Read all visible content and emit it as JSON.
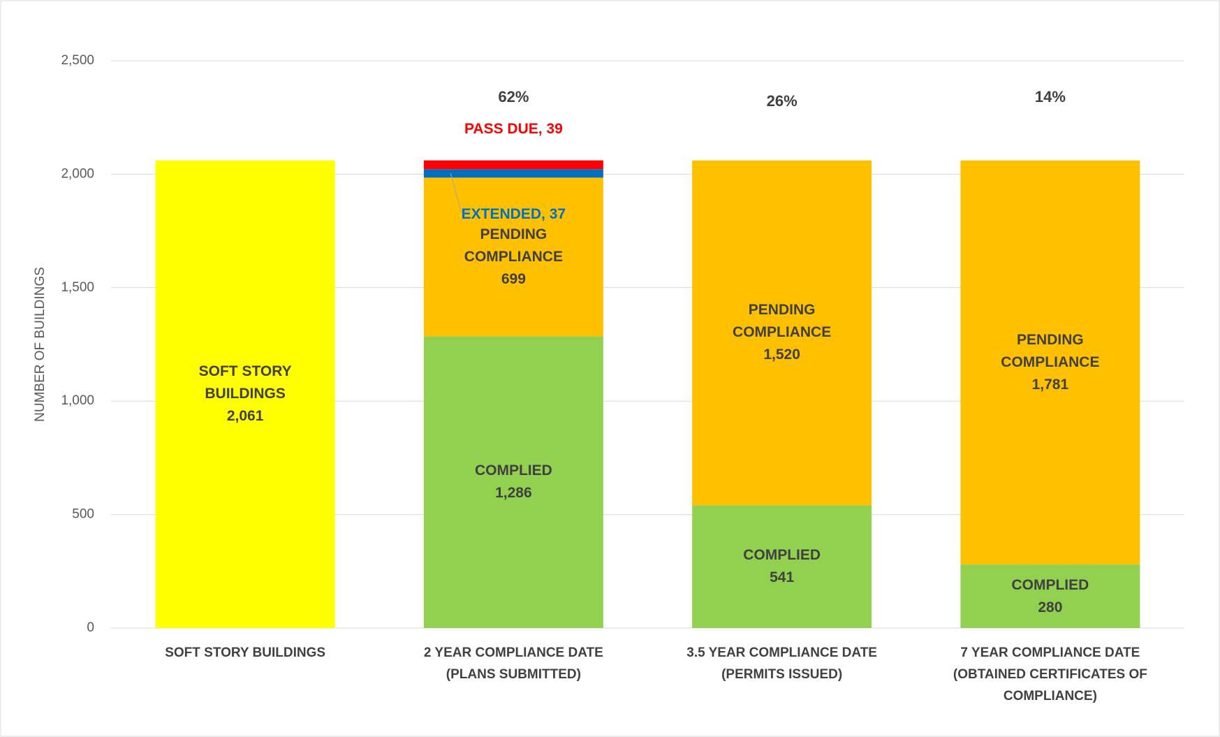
{
  "chart_data": {
    "type": "stacked_bar",
    "y_axis_label": "NUMBER OF BUILDINGS",
    "categories": [
      [
        "SOFT STORY BUILDINGS"
      ],
      [
        "2 YEAR COMPLIANCE DATE",
        "(PLANS SUBMITTED)"
      ],
      [
        "3.5 YEAR COMPLIANCE DATE",
        "(PERMITS ISSUED)"
      ],
      [
        "7 YEAR COMPLIANCE DATE",
        "(OBTAINED CERTIFICATES OF",
        "COMPLIANCE)"
      ]
    ],
    "series": [
      {
        "name": "SOFT STORY BUILDINGS",
        "color": "#ffff00",
        "label_color": "#404040",
        "values": [
          2061,
          null,
          null,
          null
        ],
        "value_labels": [
          "2,061",
          null,
          null,
          null
        ]
      },
      {
        "name": "COMPLIED",
        "color": "#92d050",
        "label_color": "#404040",
        "values": [
          null,
          1286,
          541,
          280
        ],
        "value_labels": [
          null,
          "1,286",
          "541",
          "280"
        ]
      },
      {
        "name": "PENDING COMPLIANCE",
        "color": "#ffc000",
        "label_color": "#404040",
        "values": [
          null,
          699,
          1520,
          1781
        ],
        "value_labels": [
          null,
          "699",
          "1,520",
          "1,781"
        ]
      },
      {
        "name": "EXTENDED",
        "color": "#0070c0",
        "label_color": "#0070c0",
        "values": [
          null,
          37,
          null,
          null
        ],
        "value_labels": [
          null,
          ", 37",
          null,
          null
        ]
      },
      {
        "name": "PASS DUE",
        "color": "#ff0000",
        "label_color": "#ff0000",
        "values": [
          null,
          39,
          null,
          null
        ],
        "value_labels": [
          null,
          ", 39",
          null,
          null
        ]
      }
    ],
    "annotations": [
      null,
      "62%",
      "26%",
      "14%"
    ],
    "ylim": [
      0,
      2500
    ],
    "yticks": [
      0,
      {
        "value": 500,
        "label": "500"
      },
      {
        "value": 1000,
        "label": "1,000"
      },
      {
        "value": 1500,
        "label": "1,500"
      },
      {
        "value": 2000,
        "label": "2,000"
      },
      {
        "value": 2500,
        "label": "2,500"
      }
    ],
    "grid": true
  }
}
